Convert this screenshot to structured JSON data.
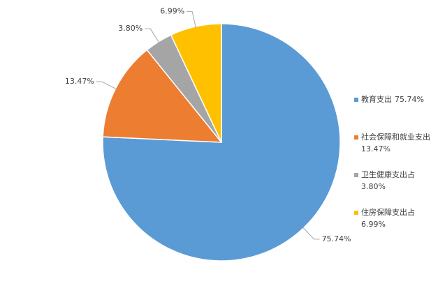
{
  "chart_data": {
    "type": "pie",
    "categories": [
      "教育支出",
      "社会保障和就业支出",
      "卫生健康支出占",
      "住房保障支出占"
    ],
    "values": [
      75.74,
      13.47,
      3.8,
      6.99
    ],
    "value_labels": [
      "75.74%",
      "13.47%",
      "3.80%",
      "6.99%"
    ],
    "colors": [
      "#5b9bd5",
      "#ed7d31",
      "#a5a5a5",
      "#ffc000"
    ],
    "legend": "right"
  }
}
